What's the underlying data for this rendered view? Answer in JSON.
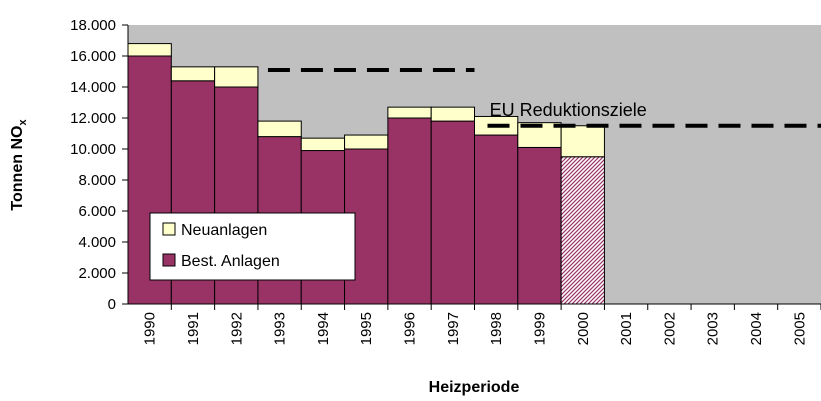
{
  "chart_data": {
    "type": "stacked_bar",
    "xlabel": "Heizperiode",
    "ylabel": {
      "text": "Tonnen NO",
      "subscript": "x"
    },
    "categories": [
      "1990",
      "1991",
      "1992",
      "1993",
      "1994",
      "1995",
      "1996",
      "1997",
      "1998",
      "1999",
      "2000",
      "2001",
      "2002",
      "2003",
      "2004",
      "2005"
    ],
    "series": [
      {
        "name": "Best. Anlagen",
        "color": "#993366",
        "hatch": "2000",
        "values": [
          16000,
          14400,
          14000,
          10800,
          9900,
          10000,
          12000,
          11800,
          10900,
          10100,
          9500,
          null,
          null,
          null,
          null,
          null
        ]
      },
      {
        "name": "Neuanlagen",
        "color": "#ffffcc",
        "values": [
          800,
          900,
          1300,
          1000,
          800,
          900,
          700,
          900,
          1200,
          1600,
          2000,
          null,
          null,
          null,
          null,
          null
        ]
      }
    ],
    "targets": [
      {
        "value": 15100,
        "from": "1993",
        "to": "1997"
      },
      {
        "value": 11500,
        "from": "1998",
        "to": "2005"
      }
    ],
    "annotation": "EU Reduktionsziele",
    "ylim": [
      0,
      18000
    ],
    "yticks": [
      {
        "value": 0,
        "label": "0"
      },
      {
        "value": 2000,
        "label": "2.000"
      },
      {
        "value": 4000,
        "label": "4.000"
      },
      {
        "value": 6000,
        "label": "6.000"
      },
      {
        "value": 8000,
        "label": "8.000"
      },
      {
        "value": 10000,
        "label": "10.000"
      },
      {
        "value": 12000,
        "label": "12.000"
      },
      {
        "value": 14000,
        "label": "14.000"
      },
      {
        "value": 16000,
        "label": "16.000"
      },
      {
        "value": 18000,
        "label": "18.000"
      }
    ],
    "plot_background": "#c0c0c0",
    "legend": "lower-left"
  }
}
